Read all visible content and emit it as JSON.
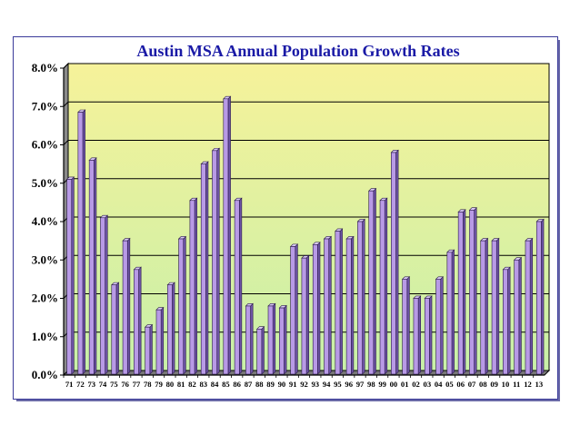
{
  "chart_data": {
    "type": "bar",
    "title": "Austin MSA Annual Population Growth Rates",
    "xlabel": "",
    "ylabel": "",
    "ylim": [
      0,
      8
    ],
    "yticks": [
      "0.0%",
      "1.0%",
      "2.0%",
      "3.0%",
      "4.0%",
      "5.0%",
      "6.0%",
      "7.0%",
      "8.0%"
    ],
    "categories": [
      "71",
      "72",
      "73",
      "74",
      "75",
      "76",
      "77",
      "78",
      "79",
      "80",
      "81",
      "82",
      "83",
      "84",
      "85",
      "86",
      "87",
      "88",
      "89",
      "90",
      "91",
      "92",
      "93",
      "94",
      "95",
      "96",
      "97",
      "98",
      "99",
      "00",
      "01",
      "02",
      "03",
      "04",
      "05",
      "06",
      "07",
      "08",
      "09",
      "10",
      "11",
      "12",
      "13"
    ],
    "values": [
      5.1,
      6.85,
      5.6,
      4.1,
      2.35,
      3.5,
      2.75,
      1.25,
      1.7,
      2.35,
      3.55,
      4.55,
      5.5,
      5.85,
      7.2,
      4.55,
      1.8,
      1.2,
      1.8,
      1.75,
      3.35,
      3.05,
      3.4,
      3.55,
      3.75,
      3.55,
      4.0,
      4.8,
      4.55,
      5.8,
      2.5,
      2.0,
      2.0,
      2.5,
      3.2,
      4.25,
      4.3,
      3.5,
      3.5,
      2.75,
      3.0,
      3.5,
      4.0
    ],
    "grid": true,
    "colors": {
      "bar_front": "#b89ae6",
      "bar_side": "#6e54a6",
      "bar_top": "#d8c8f4",
      "bg_top": "#f6f29a",
      "bg_bottom": "#c8f0a8",
      "title": "#1a1aa6",
      "grid": "#000000"
    }
  }
}
